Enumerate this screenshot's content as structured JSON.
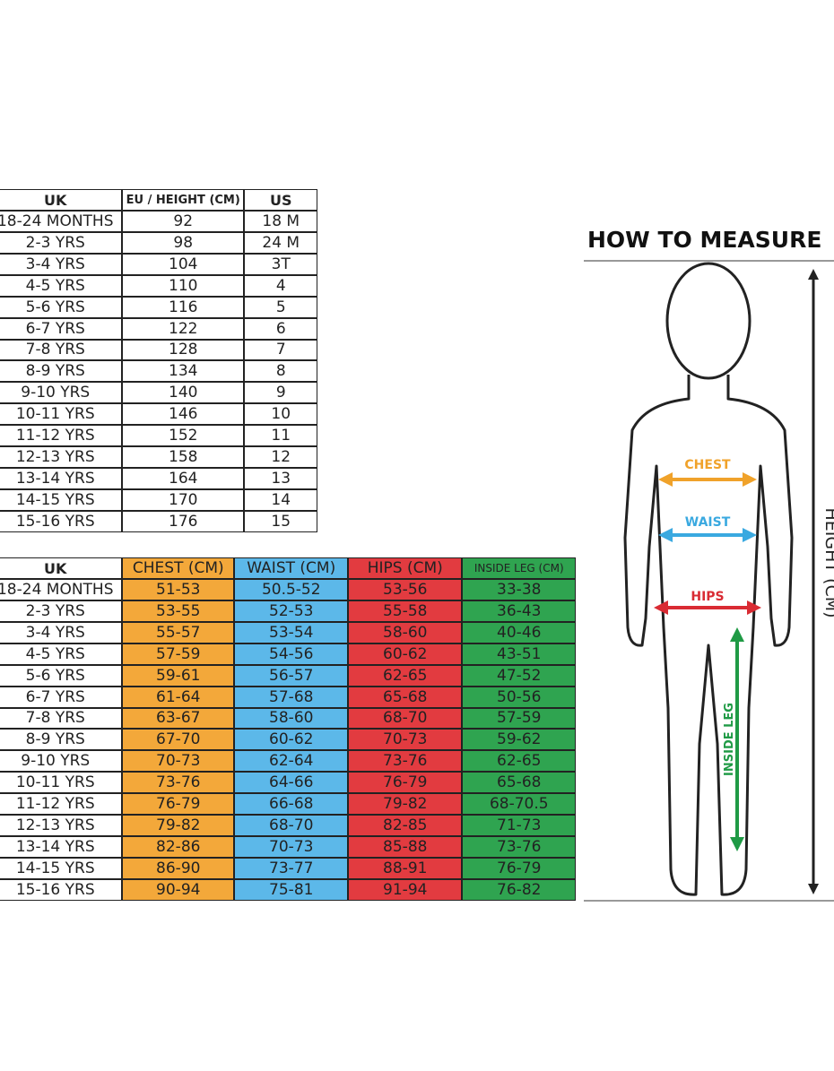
{
  "size_table": {
    "headers": [
      "UK",
      "EU / HEIGHT (CM)",
      "US"
    ],
    "rows": [
      [
        "18-24 MONTHS",
        "92",
        "18 M"
      ],
      [
        "2-3 YRS",
        "98",
        "24 M"
      ],
      [
        "3-4 YRS",
        "104",
        "3T"
      ],
      [
        "4-5 YRS",
        "110",
        "4"
      ],
      [
        "5-6 YRS",
        "116",
        "5"
      ],
      [
        "6-7 YRS",
        "122",
        "6"
      ],
      [
        "7-8 YRS",
        "128",
        "7"
      ],
      [
        "8-9 YRS",
        "134",
        "8"
      ],
      [
        "9-10 YRS",
        "140",
        "9"
      ],
      [
        "10-11 YRS",
        "146",
        "10"
      ],
      [
        "11-12 YRS",
        "152",
        "11"
      ],
      [
        "12-13 YRS",
        "158",
        "12"
      ],
      [
        "13-14 YRS",
        "164",
        "13"
      ],
      [
        "14-15 YRS",
        "170",
        "14"
      ],
      [
        "15-16 YRS",
        "176",
        "15"
      ]
    ]
  },
  "measure_table": {
    "headers": [
      "UK",
      "CHEST (CM)",
      "WAIST (CM)",
      "HIPS (CM)",
      "INSIDE LEG (CM)"
    ],
    "rows": [
      [
        "18-24 MONTHS",
        "51-53",
        "50.5-52",
        "53-56",
        "33-38"
      ],
      [
        "2-3 YRS",
        "53-55",
        "52-53",
        "55-58",
        "36-43"
      ],
      [
        "3-4 YRS",
        "55-57",
        "53-54",
        "58-60",
        "40-46"
      ],
      [
        "4-5 YRS",
        "57-59",
        "54-56",
        "60-62",
        "43-51"
      ],
      [
        "5-6 YRS",
        "59-61",
        "56-57",
        "62-65",
        "47-52"
      ],
      [
        "6-7 YRS",
        "61-64",
        "57-68",
        "65-68",
        "50-56"
      ],
      [
        "7-8 YRS",
        "63-67",
        "58-60",
        "68-70",
        "57-59"
      ],
      [
        "8-9 YRS",
        "67-70",
        "60-62",
        "70-73",
        "59-62"
      ],
      [
        "9-10 YRS",
        "70-73",
        "62-64",
        "73-76",
        "62-65"
      ],
      [
        "10-11 YRS",
        "73-76",
        "64-66",
        "76-79",
        "65-68"
      ],
      [
        "11-12 YRS",
        "76-79",
        "66-68",
        "79-82",
        "68-70.5"
      ],
      [
        "12-13 YRS",
        "79-82",
        "68-70",
        "82-85",
        "71-73"
      ],
      [
        "13-14 YRS",
        "82-86",
        "70-73",
        "85-88",
        "73-76"
      ],
      [
        "14-15 YRS",
        "86-90",
        "73-77",
        "88-91",
        "76-79"
      ],
      [
        "15-16 YRS",
        "90-94",
        "75-81",
        "91-94",
        "76-82"
      ]
    ]
  },
  "diagram": {
    "title": "HOW TO MEASURE",
    "chest": "CHEST",
    "waist": "WAIST",
    "hips": "HIPS",
    "inside_leg": "INSIDE LEG",
    "height": "HEIGHT (CM)"
  }
}
